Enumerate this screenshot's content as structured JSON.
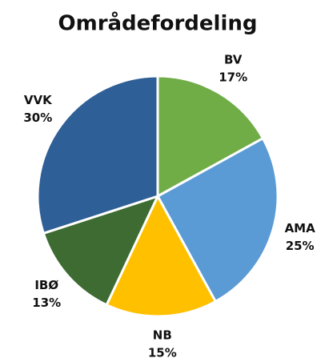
{
  "chart_data": {
    "type": "pie",
    "title": "Områdefordeling",
    "categories": [
      "BV",
      "AMA",
      "NB",
      "IBØ",
      "VVK"
    ],
    "values": [
      17,
      25,
      15,
      13,
      30
    ],
    "value_labels": [
      "17%",
      "25%",
      "15%",
      "13%",
      "30%"
    ],
    "colors": [
      "#70ad47",
      "#5b9bd5",
      "#ffc000",
      "#3d6b32",
      "#2e5f96"
    ]
  }
}
